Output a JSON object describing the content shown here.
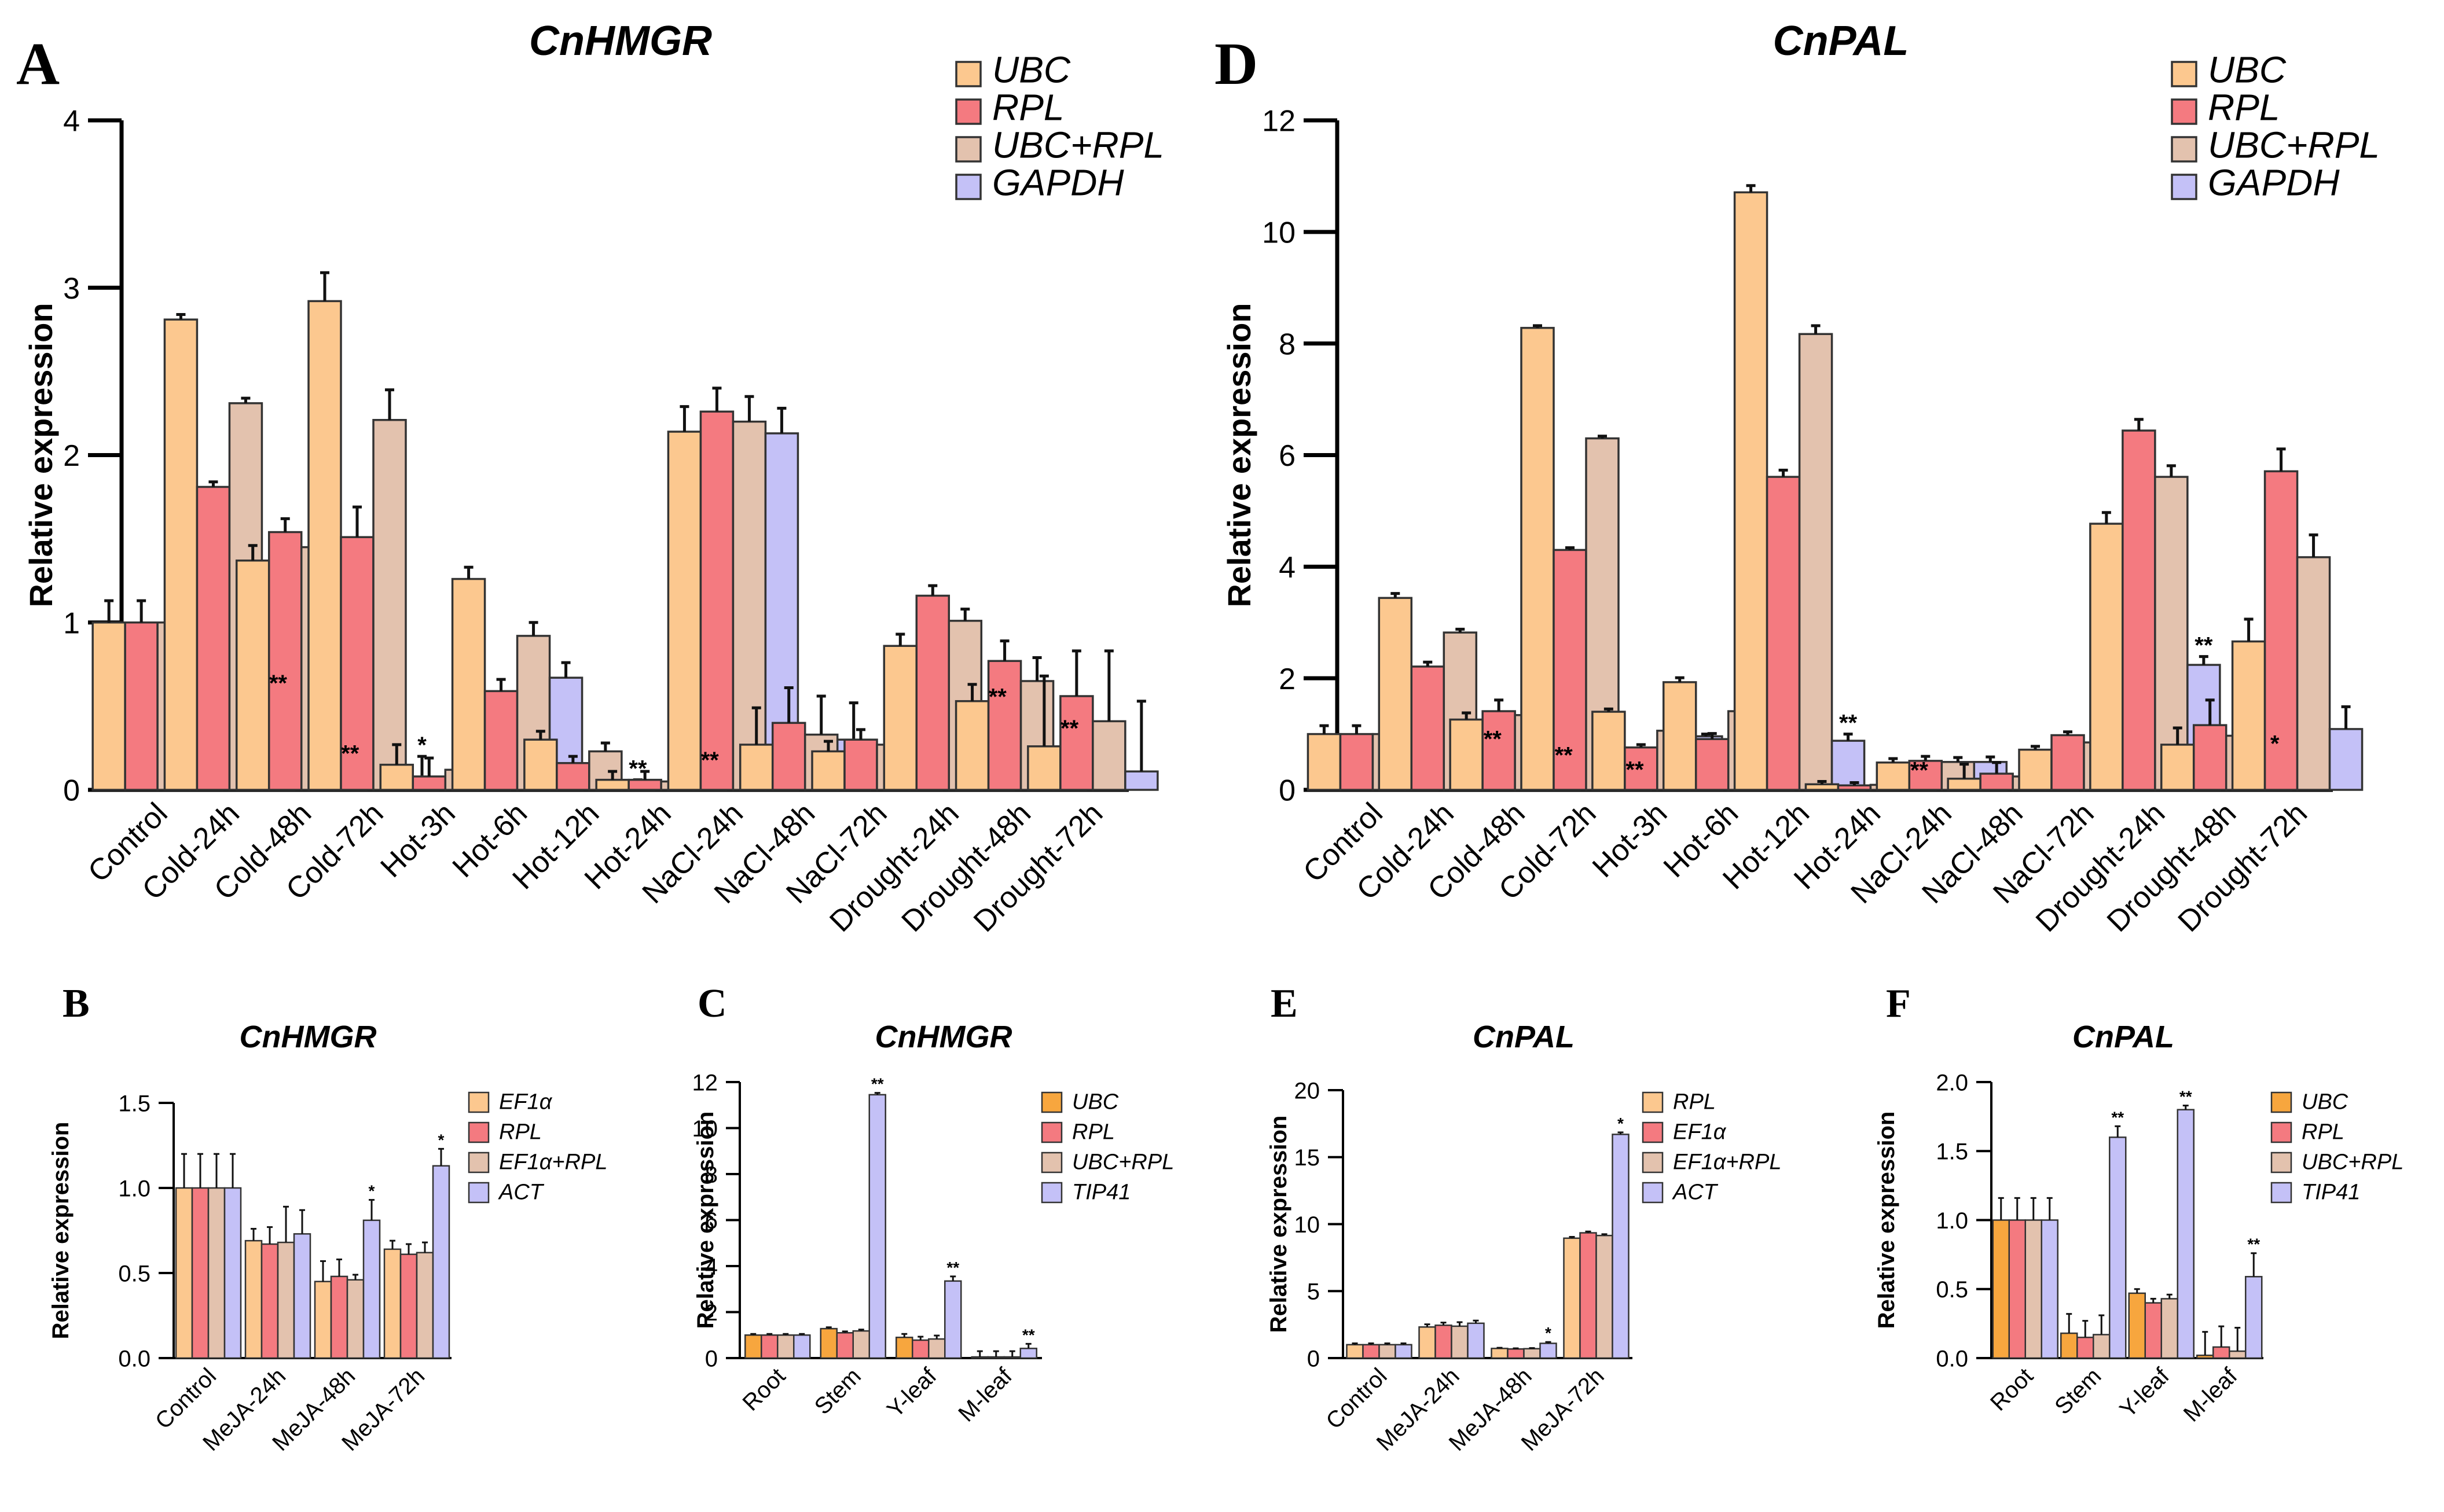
{
  "colors": {
    "orange_light": "#FCC88F",
    "orange_dark": "#F7A63E",
    "red": "#F47A80",
    "tan": "#E3C2AE",
    "lavender": "#C4C1F7",
    "outline": "#333333"
  },
  "chart_data": [
    {
      "panel": "A",
      "type": "bar",
      "title": "CnHMGR",
      "ylabel": "Relative expression",
      "xlabel": "",
      "ylim": [
        0,
        4
      ],
      "yticks": [
        "0",
        "1",
        "2",
        "3",
        "4"
      ],
      "categories": [
        "Control",
        "Cold-24h",
        "Cold-48h",
        "Cold-72h",
        "Hot-3h",
        "Hot-6h",
        "Hot-12h",
        "Hot-24h",
        "NaCl-24h",
        "NaCl-48h",
        "NaCl-72h",
        "Drought-24h",
        "Drought-48h",
        "Drought-72h"
      ],
      "legend": "top-right",
      "series": [
        {
          "name": "UBC",
          "color": "#FCC88F",
          "values": [
            1,
            2.81,
            1.37,
            2.92,
            0.15,
            1.26,
            0.3,
            0.06,
            2.14,
            0.27,
            0.23,
            0.86,
            0.53,
            0.26
          ],
          "errors": [
            0.13,
            0.03,
            0.09,
            0.17,
            0.12,
            0.07,
            0.05,
            0.05,
            0.15,
            0.22,
            0.06,
            0.07,
            0.1,
            0.42
          ]
        },
        {
          "name": "RPL",
          "color": "#F47A80",
          "values": [
            1,
            1.81,
            1.54,
            1.51,
            0.08,
            0.59,
            0.16,
            0.06,
            2.26,
            0.4,
            0.3,
            1.16,
            0.77,
            0.56
          ],
          "errors": [
            0.13,
            0.03,
            0.08,
            0.18,
            0.11,
            0.07,
            0.04,
            0.05,
            0.14,
            0.21,
            0.06,
            0.06,
            0.12,
            0.27
          ]
        },
        {
          "name": "UBC+RPL",
          "color": "#E3C2AE",
          "values": [
            1,
            2.31,
            1.45,
            2.21,
            0.12,
            0.92,
            0.23,
            0.05,
            2.2,
            0.33,
            0.27,
            1.01,
            0.65,
            0.41
          ],
          "errors": [
            0.13,
            0.03,
            0.08,
            0.18,
            0.15,
            0.08,
            0.05,
            0.05,
            0.15,
            0.23,
            0.06,
            0.07,
            0.14,
            0.42
          ]
        },
        {
          "name": "GAPDH",
          "color": "#C4C1F7",
          "values": [
            1,
            0.54,
            0.06,
            0.03,
            0.1,
            0.67,
            0.02,
            0.04,
            2.13,
            0.3,
            0.3,
            0.41,
            0.19,
            0.11
          ],
          "errors": [
            0.13,
            0.03,
            0.09,
            0.17,
            0.17,
            0.09,
            0.04,
            0.07,
            0.15,
            0.22,
            0.06,
            0.08,
            0.11,
            0.42
          ]
        }
      ],
      "annotations": [
        {
          "category": "Cold-24h",
          "series": "GAPDH",
          "text": "**"
        },
        {
          "category": "Cold-48h",
          "series": "GAPDH",
          "text": "**"
        },
        {
          "category": "Cold-72h",
          "series": "GAPDH",
          "text": "*"
        },
        {
          "category": "Hot-12h",
          "series": "GAPDH",
          "text": "**"
        },
        {
          "category": "Hot-24h",
          "series": "GAPDH",
          "text": "**"
        },
        {
          "category": "Drought-24h",
          "series": "GAPDH",
          "text": "**"
        },
        {
          "category": "Drought-48h",
          "series": "GAPDH",
          "text": "**"
        }
      ]
    },
    {
      "panel": "B",
      "type": "bar",
      "title": "CnHMGR",
      "ylabel": "Relative expression",
      "xlabel": "",
      "ylim": [
        0,
        1.5
      ],
      "yticks": [
        "0.0",
        "0.5",
        "1.0",
        "1.5"
      ],
      "categories": [
        "Control",
        "MeJA-24h",
        "MeJA-48h",
        "MeJA-72h"
      ],
      "legend": "right",
      "series": [
        {
          "name": "EF1α",
          "color": "#FCC88F",
          "values": [
            1,
            0.69,
            0.45,
            0.64
          ],
          "errors": [
            0.2,
            0.07,
            0.12,
            0.05
          ]
        },
        {
          "name": "RPL",
          "color": "#F47A80",
          "values": [
            1,
            0.67,
            0.48,
            0.61
          ],
          "errors": [
            0.2,
            0.1,
            0.1,
            0.06
          ]
        },
        {
          "name": "EF1α+RPL",
          "color": "#E3C2AE",
          "values": [
            1,
            0.68,
            0.46,
            0.62
          ],
          "errors": [
            0.2,
            0.21,
            0.03,
            0.06
          ]
        },
        {
          "name": "ACT",
          "color": "#C4C1F7",
          "values": [
            1,
            0.73,
            0.81,
            1.13
          ],
          "errors": [
            0.2,
            0.14,
            0.12,
            0.1
          ]
        }
      ],
      "annotations": [
        {
          "category": "MeJA-48h",
          "series": "ACT",
          "text": "*"
        },
        {
          "category": "MeJA-72h",
          "series": "ACT",
          "text": "*"
        }
      ]
    },
    {
      "panel": "C",
      "type": "bar",
      "title": "CnHMGR",
      "ylabel": "Relative expression",
      "xlabel": "",
      "ylim": [
        0,
        12
      ],
      "yticks": [
        "0",
        "2",
        "4",
        "6",
        "8",
        "10",
        "12"
      ],
      "categories": [
        "Root",
        "Stem",
        "Y-leaf",
        "M-leaf"
      ],
      "legend": "right",
      "series": [
        {
          "name": "UBC",
          "color": "#F7A63E",
          "values": [
            1,
            1.28,
            0.9,
            0.05
          ],
          "errors": [
            0.05,
            0.06,
            0.15,
            0.25
          ]
        },
        {
          "name": "RPL",
          "color": "#F47A80",
          "values": [
            1,
            1.1,
            0.78,
            0.05
          ],
          "errors": [
            0.05,
            0.06,
            0.15,
            0.25
          ]
        },
        {
          "name": "UBC+RPL",
          "color": "#E3C2AE",
          "values": [
            1,
            1.18,
            0.83,
            0.05
          ],
          "errors": [
            0.05,
            0.06,
            0.15,
            0.25
          ]
        },
        {
          "name": "TIP41",
          "color": "#C4C1F7",
          "values": [
            1,
            11.45,
            3.35,
            0.42
          ],
          "errors": [
            0.05,
            0.08,
            0.2,
            0.2
          ]
        }
      ],
      "annotations": [
        {
          "category": "Stem",
          "series": "TIP41",
          "text": "**"
        },
        {
          "category": "Y-leaf",
          "series": "TIP41",
          "text": "**"
        },
        {
          "category": "M-leaf",
          "series": "TIP41",
          "text": "**"
        }
      ]
    },
    {
      "panel": "D",
      "type": "bar",
      "title": "CnPAL",
      "ylabel": "Relative expression",
      "xlabel": "",
      "ylim": [
        0,
        12
      ],
      "yticks": [
        "0",
        "2",
        "4",
        "6",
        "8",
        "10",
        "12"
      ],
      "categories": [
        "Control",
        "Cold-24h",
        "Cold-48h",
        "Cold-72h",
        "Hot-3h",
        "Hot-6h",
        "Hot-12h",
        "Hot-24h",
        "NaCl-24h",
        "NaCl-48h",
        "NaCl-72h",
        "Drought-24h",
        "Drought-48h",
        "Drought-72h"
      ],
      "legend": "top-right",
      "series": [
        {
          "name": "UBC",
          "color": "#FCC88F",
          "values": [
            1,
            3.44,
            1.26,
            8.28,
            1.4,
            1.93,
            10.71,
            0.1,
            0.49,
            0.2,
            0.72,
            4.77,
            0.81,
            2.66
          ],
          "errors": [
            0.15,
            0.08,
            0.12,
            0.04,
            0.05,
            0.08,
            0.12,
            0.05,
            0.07,
            0.26,
            0.06,
            0.2,
            0.3,
            0.4
          ]
        },
        {
          "name": "RPL",
          "color": "#F47A80",
          "values": [
            1,
            2.21,
            1.41,
            4.3,
            0.76,
            0.91,
            5.61,
            0.08,
            0.52,
            0.29,
            0.98,
            6.44,
            1.16,
            5.71
          ],
          "errors": [
            0.15,
            0.08,
            0.2,
            0.04,
            0.05,
            0.1,
            0.12,
            0.05,
            0.08,
            0.2,
            0.06,
            0.2,
            0.45,
            0.4
          ]
        },
        {
          "name": "UBC+RPL",
          "color": "#E3C2AE",
          "values": [
            1,
            2.82,
            1.34,
            6.3,
            1.06,
            1.41,
            8.17,
            0.09,
            0.5,
            0.24,
            0.85,
            5.61,
            0.97,
            4.17
          ],
          "errors": [
            0.15,
            0.06,
            0.22,
            0.04,
            0.04,
            0.07,
            0.15,
            0.05,
            0.08,
            0.35,
            0.06,
            0.2,
            0.35,
            0.4
          ]
        },
        {
          "name": "GAPDH",
          "color": "#C4C1F7",
          "values": [
            1,
            0.63,
            0.07,
            0.11,
            0.96,
            1.05,
            0.88,
            0.05,
            0.5,
            0.19,
            0.96,
            2.24,
            0.28,
            1.09
          ],
          "errors": [
            0.15,
            0.08,
            0.35,
            0.05,
            0.04,
            0.06,
            0.12,
            0.1,
            0.09,
            0.2,
            0.06,
            0.15,
            0.35,
            0.4
          ]
        }
      ],
      "annotations": [
        {
          "category": "Cold-24h",
          "series": "GAPDH",
          "text": "**"
        },
        {
          "category": "Cold-48h",
          "series": "GAPDH",
          "text": "**"
        },
        {
          "category": "Cold-72h",
          "series": "GAPDH",
          "text": "**"
        },
        {
          "category": "Hot-12h",
          "series": "GAPDH",
          "text": "**"
        },
        {
          "category": "Hot-24h",
          "series": "GAPDH",
          "text": "**"
        },
        {
          "category": "Drought-24h",
          "series": "GAPDH",
          "text": "**"
        },
        {
          "category": "Drought-48h",
          "series": "GAPDH",
          "text": "*"
        }
      ]
    },
    {
      "panel": "E",
      "type": "bar",
      "title": "CnPAL",
      "ylabel": "Relative expression",
      "xlabel": "",
      "ylim": [
        0,
        20
      ],
      "yticks": [
        "0",
        "5",
        "10",
        "15",
        "20"
      ],
      "categories": [
        "Control",
        "MeJA-24h",
        "MeJA-48h",
        "MeJA-72h"
      ],
      "legend": "right",
      "series": [
        {
          "name": "RPL",
          "color": "#FCC88F",
          "values": [
            1,
            2.32,
            0.72,
            8.95
          ],
          "errors": [
            0.1,
            0.2,
            0.05,
            0.1
          ]
        },
        {
          "name": "EF1α",
          "color": "#F47A80",
          "values": [
            1,
            2.45,
            0.68,
            9.35
          ],
          "errors": [
            0.1,
            0.2,
            0.05,
            0.1
          ]
        },
        {
          "name": "EF1α+RPL",
          "color": "#E3C2AE",
          "values": [
            1,
            2.38,
            0.7,
            9.15
          ],
          "errors": [
            0.1,
            0.3,
            0.05,
            0.1
          ]
        },
        {
          "name": "ACT",
          "color": "#C4C1F7",
          "values": [
            1,
            2.6,
            1.1,
            16.7
          ],
          "errors": [
            0.1,
            0.2,
            0.1,
            0.15
          ]
        }
      ],
      "annotations": [
        {
          "category": "MeJA-48h",
          "series": "ACT",
          "text": "*"
        },
        {
          "category": "MeJA-72h",
          "series": "ACT",
          "text": "*"
        }
      ]
    },
    {
      "panel": "F",
      "type": "bar",
      "title": "CnPAL",
      "ylabel": "Relative expression",
      "xlabel": "",
      "ylim": [
        0,
        2.0
      ],
      "yticks": [
        "0.0",
        "0.5",
        "1.0",
        "1.5",
        "2.0"
      ],
      "categories": [
        "Root",
        "Stem",
        "Y-leaf",
        "M-leaf"
      ],
      "legend": "right",
      "series": [
        {
          "name": "UBC",
          "color": "#F7A63E",
          "values": [
            1,
            0.18,
            0.47,
            0.02
          ],
          "errors": [
            0.16,
            0.14,
            0.03,
            0.17
          ]
        },
        {
          "name": "RPL",
          "color": "#F47A80",
          "values": [
            1,
            0.15,
            0.4,
            0.08
          ],
          "errors": [
            0.16,
            0.12,
            0.03,
            0.15
          ]
        },
        {
          "name": "UBC+RPL",
          "color": "#E3C2AE",
          "values": [
            1,
            0.17,
            0.43,
            0.05
          ],
          "errors": [
            0.16,
            0.14,
            0.03,
            0.17
          ]
        },
        {
          "name": "TIP41",
          "color": "#C4C1F7",
          "values": [
            1,
            1.6,
            1.8,
            0.59
          ],
          "errors": [
            0.16,
            0.08,
            0.03,
            0.17
          ]
        }
      ],
      "annotations": [
        {
          "category": "Stem",
          "series": "TIP41",
          "text": "**"
        },
        {
          "category": "Y-leaf",
          "series": "TIP41",
          "text": "**"
        },
        {
          "category": "M-leaf",
          "series": "TIP41",
          "text": "**"
        }
      ]
    }
  ]
}
